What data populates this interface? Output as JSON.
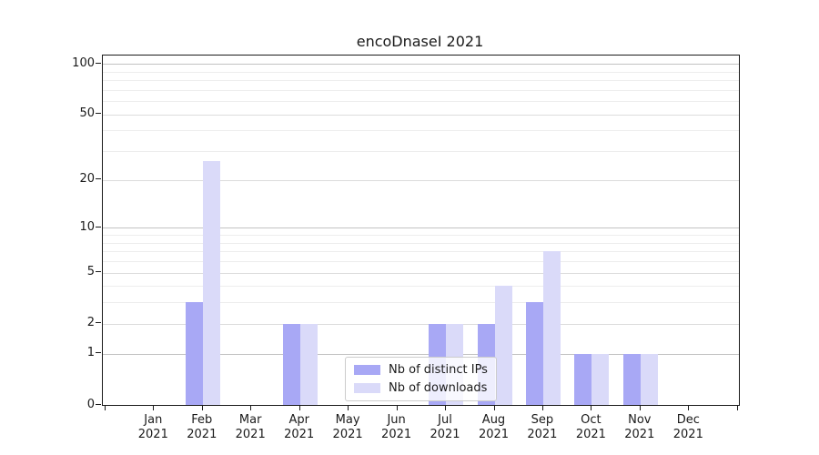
{
  "title": "encoDnaseI 2021",
  "chart_data": {
    "type": "bar",
    "title": "encoDnaseI 2021",
    "categories": [
      "Jan 2021",
      "Feb 2021",
      "Mar 2021",
      "Apr 2021",
      "May 2021",
      "Jun 2021",
      "Jul 2021",
      "Aug 2021",
      "Sep 2021",
      "Oct 2021",
      "Nov 2021",
      "Dec 2021"
    ],
    "series": [
      {
        "name": "Nb of distinct IPs",
        "color": "#a8a8f5",
        "values": [
          0,
          3,
          0,
          2,
          0,
          0,
          2,
          2,
          3,
          1,
          1,
          0
        ]
      },
      {
        "name": "Nb of downloads",
        "color": "#dadaf9",
        "values": [
          0,
          26,
          0,
          2,
          0,
          0,
          2,
          4,
          7,
          1,
          1,
          0
        ]
      }
    ],
    "xlabel": "",
    "ylabel": "",
    "yscale": "log1p",
    "ylim": [
      0,
      112
    ],
    "grid": true,
    "legend_position": "lower center-right inside plot"
  },
  "axes": {
    "y_tick_labels": [
      "0",
      "1",
      "2",
      "5",
      "10",
      "20",
      "50",
      "100"
    ],
    "y_tick_values": [
      0,
      1,
      2,
      5,
      10,
      20,
      50,
      100
    ],
    "y_gridlines_decade": [
      1,
      10,
      100
    ],
    "y_gridlines_sub": [
      2,
      5,
      20,
      50
    ],
    "y_gridlines_minor": [
      3,
      4,
      6,
      7,
      8,
      9,
      30,
      40,
      60,
      70,
      80,
      90
    ],
    "x_year_line": "2021"
  },
  "colors": {
    "distinct_ips": "#a8a8f5",
    "downloads": "#dadaf9",
    "spine": "#1a1a1a",
    "grid_major": "#c2c2c2",
    "grid_minor": "#ededed",
    "background": "#ffffff"
  }
}
